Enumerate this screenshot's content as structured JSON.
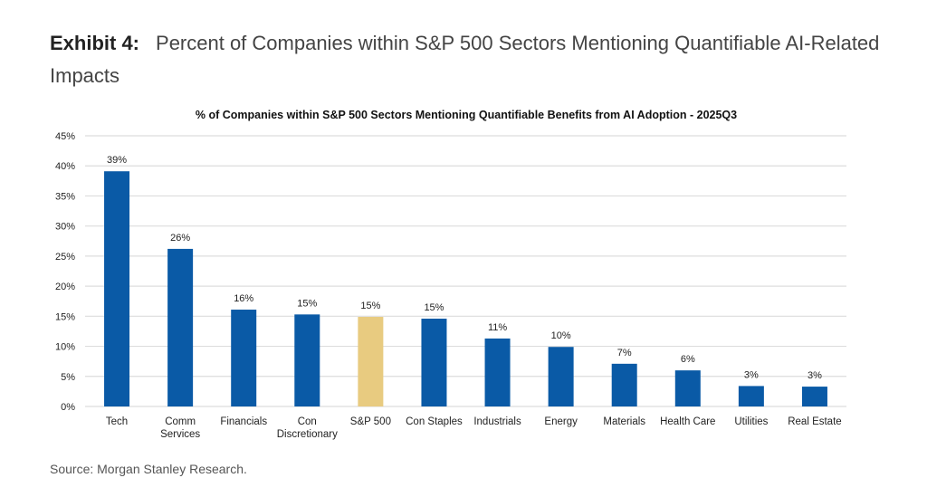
{
  "page": {
    "cutoff_text": "",
    "exhibit_number": "Exhibit 4:",
    "exhibit_title": "Percent of Companies within S&P 500 Sectors Mentioning Quantifiable AI-Related Impacts",
    "source": "Source: Morgan Stanley Research."
  },
  "chart_data": {
    "type": "bar",
    "title": "% of Companies within S&P 500 Sectors Mentioning Quantifiable Benefits from AI Adoption - 2025Q3",
    "xlabel": "",
    "ylabel": "",
    "ylim": [
      0,
      45
    ],
    "yticks": [
      0,
      5,
      10,
      15,
      20,
      25,
      30,
      35,
      40,
      45
    ],
    "ytick_labels": [
      "0%",
      "5%",
      "10%",
      "15%",
      "20%",
      "25%",
      "30%",
      "35%",
      "40%",
      "45%"
    ],
    "grid": true,
    "legend": "none",
    "categories": [
      "Tech",
      "Comm Services",
      "Financials",
      "Con Discretionary",
      "S&P 500",
      "Con Staples",
      "Industrials",
      "Energy",
      "Materials",
      "Health Care",
      "Utilities",
      "Real Estate"
    ],
    "category_lines": [
      [
        "Tech"
      ],
      [
        "Comm",
        "Services"
      ],
      [
        "Financials"
      ],
      [
        "Con",
        "Discretionary"
      ],
      [
        "S&P 500"
      ],
      [
        "Con Staples"
      ],
      [
        "Industrials"
      ],
      [
        "Energy"
      ],
      [
        "Materials"
      ],
      [
        "Health Care"
      ],
      [
        "Utilities"
      ],
      [
        "Real Estate"
      ]
    ],
    "values": [
      39.1,
      26.2,
      16.1,
      15.3,
      14.9,
      14.6,
      11.3,
      9.9,
      7.1,
      6.0,
      3.4,
      3.3
    ],
    "data_labels": [
      "39%",
      "26%",
      "16%",
      "15%",
      "15%",
      "15%",
      "11%",
      "10%",
      "7%",
      "6%",
      "3%",
      "3%"
    ],
    "colors": {
      "default": "#0A5AA6",
      "highlight": "#E8CB80",
      "highlight_category": "S&P 500",
      "grid": "#DDDDDD"
    }
  }
}
